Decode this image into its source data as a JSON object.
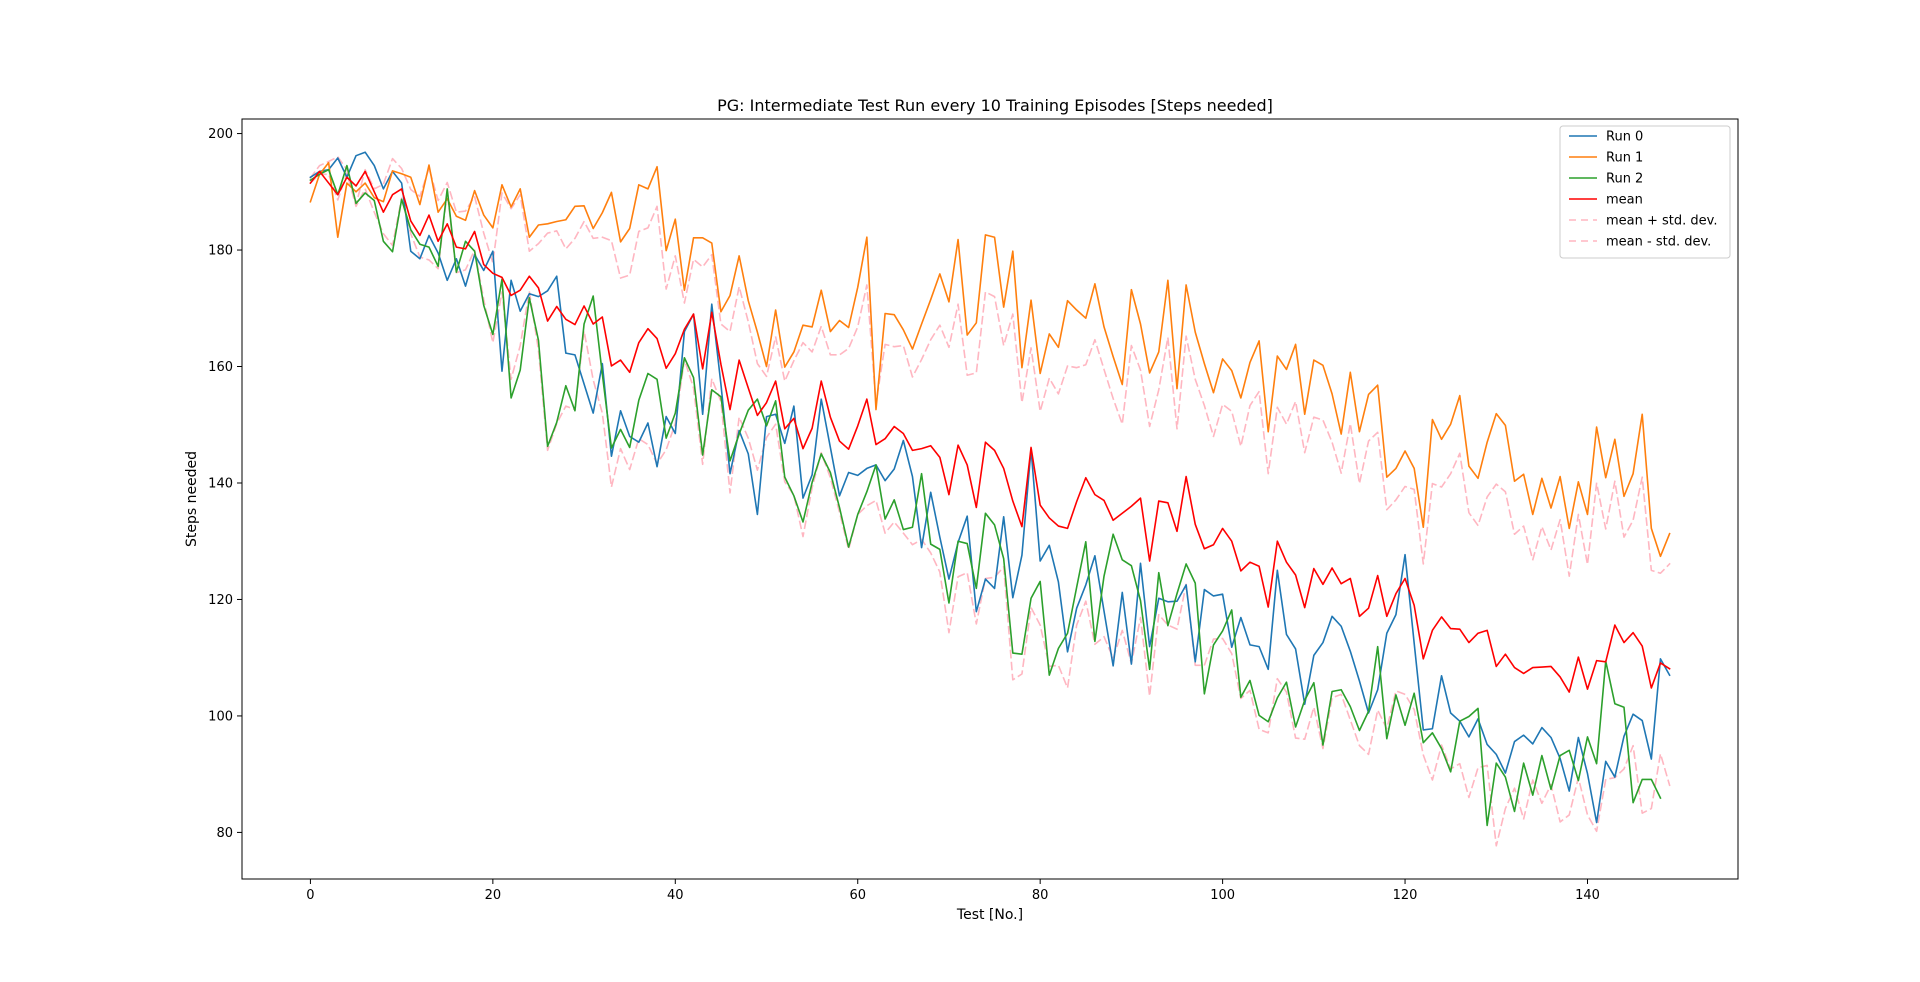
{
  "chart_data": {
    "type": "line",
    "title": "PG: Intermediate Test Run every 10 Training Episodes [Steps needed]",
    "xlabel": "Test [No.]",
    "ylabel": "Steps needed",
    "xlim": [
      -7.5,
      156.5
    ],
    "ylim": [
      72,
      202.5
    ],
    "xticks": [
      0,
      20,
      40,
      60,
      80,
      100,
      120,
      140
    ],
    "yticks": [
      80,
      100,
      120,
      140,
      160,
      180,
      200
    ],
    "grid": false,
    "legend_position": "top-right",
    "x_start": 0,
    "series": [
      {
        "name": "Run 0",
        "color": "#1f77b4",
        "dash": "",
        "values": [
          192.5,
          193.5,
          193.8,
          195.8,
          192.5,
          196.2,
          196.8,
          194.5,
          190.5,
          193.5,
          191.5,
          179.8,
          178.5,
          182.5,
          179.5,
          174.8,
          178.5,
          173.8,
          179.2,
          176.5,
          179.8,
          159.2,
          174.8,
          169.5,
          172.5,
          172.0,
          173.0,
          175.5,
          162.3,
          162.0,
          157.0,
          152.0,
          160.5,
          144.6,
          152.4,
          148.0,
          147.0,
          150.3,
          142.8,
          151.4,
          148.5,
          166.0,
          169.0,
          151.8,
          170.7,
          157.0,
          141.6,
          149.0,
          145.0,
          134.6,
          151.4,
          151.8,
          146.8,
          153.2,
          137.4,
          141.4,
          154.4,
          146.1,
          137.8,
          141.8,
          141.3,
          142.5,
          143.1,
          140.4,
          142.4,
          147.3,
          141.1,
          128.9,
          138.4,
          130.7,
          123.5,
          129.8,
          134.3,
          117.9,
          123.5,
          121.9,
          134.2,
          120.3,
          127.6,
          145.8,
          126.6,
          129.3,
          123.0,
          111.0,
          118.5,
          122.5,
          127.5,
          118.0,
          108.6,
          121.2,
          108.9,
          126.2,
          111.9,
          120.2,
          119.6,
          119.7,
          122.5,
          109.3,
          121.7,
          120.6,
          120.9,
          111.8,
          116.9,
          112.2,
          111.9,
          108.0,
          125.0,
          114.0,
          111.5,
          102.0,
          110.4,
          112.6,
          117.1,
          115.4,
          111.1,
          106.0,
          100.5,
          104.5,
          114.2,
          117.4,
          127.7,
          112.5,
          97.6,
          97.8,
          106.9,
          100.5,
          99.1,
          96.4,
          99.5,
          95.1,
          93.4,
          90.2,
          95.6,
          96.7,
          95.2,
          98.0,
          96.3,
          92.7,
          87.1,
          96.3,
          90.1,
          81.7,
          92.2,
          89.5,
          96.5,
          100.3,
          99.2,
          92.6,
          109.8,
          107.0
        ]
      },
      {
        "name": "Run 1",
        "color": "#ff7f0e",
        "dash": "",
        "values": [
          188.3,
          193.0,
          195.0,
          182.2,
          191.5,
          190.0,
          191.5,
          189.0,
          188.3,
          193.6,
          193.1,
          192.5,
          187.8,
          194.6,
          186.5,
          188.8,
          185.8,
          185.1,
          190.2,
          186.0,
          183.8,
          191.2,
          187.4,
          190.5,
          182.2,
          184.3,
          184.5,
          184.9,
          185.2,
          187.5,
          187.6,
          183.7,
          186.4,
          189.9,
          181.4,
          183.7,
          191.2,
          190.5,
          194.3,
          179.9,
          185.3,
          173.1,
          182.1,
          182.1,
          181.2,
          169.4,
          172.2,
          179.0,
          171.3,
          165.9,
          160.0,
          169.7,
          159.9,
          162.5,
          167.1,
          166.8,
          173.1,
          166.0,
          167.9,
          166.7,
          173.6,
          182.2,
          152.6,
          169.1,
          168.9,
          166.3,
          163.0,
          167.3,
          171.5,
          175.9,
          171.1,
          181.8,
          165.4,
          167.5,
          182.6,
          182.2,
          170.2,
          179.8,
          159.8,
          171.4,
          158.8,
          165.6,
          163.3,
          171.3,
          169.7,
          168.3,
          174.2,
          166.8,
          161.7,
          156.9,
          173.2,
          167.3,
          158.9,
          162.5,
          174.8,
          156.2,
          174.0,
          165.9,
          160.5,
          155.5,
          161.3,
          159.3,
          154.6,
          160.7,
          164.4,
          148.8,
          161.8,
          159.5,
          163.8,
          151.8,
          161.1,
          160.2,
          155.3,
          148.4,
          159.0,
          148.8,
          155.2,
          156.8,
          141.0,
          142.5,
          145.5,
          142.5,
          132.4,
          150.9,
          147.5,
          150.1,
          155.0,
          142.9,
          140.8,
          147.0,
          151.9,
          149.9,
          140.3,
          141.5,
          134.6,
          140.8,
          135.7,
          141.1,
          132.2,
          140.2,
          134.6,
          149.6,
          140.9,
          147.5,
          137.7,
          141.6,
          151.8,
          132.2,
          127.4,
          131.3
        ]
      },
      {
        "name": "Run 2",
        "color": "#2ca02c",
        "dash": "",
        "values": [
          192.0,
          193.0,
          193.8,
          189.5,
          194.5,
          188.0,
          189.8,
          188.5,
          181.5,
          179.7,
          188.7,
          183.5,
          181.0,
          180.5,
          177.2,
          190.5,
          176.2,
          181.5,
          179.8,
          170.5,
          165.5,
          175.0,
          154.6,
          159.4,
          171.8,
          164.5,
          146.3,
          150.4,
          156.7,
          152.4,
          167.3,
          172.1,
          158.7,
          146.0,
          149.2,
          146.1,
          154.2,
          158.8,
          157.8,
          147.7,
          152.0,
          161.5,
          158.1,
          144.8,
          156.0,
          154.8,
          143.8,
          148.4,
          152.5,
          154.4,
          149.8,
          154.1,
          141.0,
          137.8,
          133.3,
          140.1,
          145.0,
          141.8,
          135.8,
          129.0,
          134.6,
          138.5,
          143.1,
          133.8,
          137.1,
          132.0,
          132.4,
          141.6,
          129.5,
          128.6,
          119.4,
          130.0,
          129.6,
          121.9,
          134.8,
          132.8,
          127.0,
          110.8,
          110.6,
          120.2,
          123.1,
          107.0,
          111.6,
          114.2,
          122.1,
          129.9,
          112.8,
          124.0,
          131.2,
          126.8,
          125.8,
          119.8,
          108.0,
          124.6,
          115.5,
          121.0,
          126.1,
          122.8,
          103.8,
          112.2,
          114.6,
          118.2,
          103.2,
          106.1,
          100.1,
          99.0,
          103.1,
          105.8,
          98.1,
          102.7,
          105.7,
          95.0,
          104.2,
          104.5,
          101.6,
          97.5,
          100.8,
          111.9,
          96.1,
          103.6,
          98.4,
          103.9,
          95.4,
          97.1,
          94.4,
          90.4,
          99.1,
          99.9,
          101.3,
          81.2,
          91.9,
          89.5,
          83.6,
          91.9,
          86.4,
          93.2,
          87.4,
          93.2,
          94.1,
          88.9,
          96.4,
          91.8,
          109.4,
          102.1,
          101.5,
          85.1,
          89.1,
          89.1,
          85.9
        ]
      },
      {
        "name": "mean",
        "color": "#ff0000",
        "dash": "",
        "values": [
          191.5,
          193.5,
          191.5,
          189.5,
          192.5,
          191.0,
          193.5,
          190.0,
          186.5,
          189.5,
          190.5,
          185.0,
          182.5,
          186.0,
          181.5,
          184.5,
          180.5,
          180.2,
          183.2,
          177.5,
          176.0,
          175.3,
          172.2,
          173.1,
          175.5,
          173.5,
          167.8,
          170.3,
          168.1,
          167.2,
          170.4,
          167.3,
          168.5,
          160.1,
          161.1,
          159.0,
          164.1,
          166.5,
          164.8,
          159.7,
          162.2,
          166.4,
          169.0,
          159.6,
          169.3,
          160.4,
          152.6,
          161.1,
          156.3,
          151.6,
          153.8,
          157.5,
          149.3,
          151.1,
          145.9,
          149.4,
          157.5,
          151.3,
          147.2,
          145.8,
          149.8,
          154.4,
          146.6,
          147.6,
          149.7,
          148.5,
          145.6,
          145.9,
          146.4,
          144.4,
          138.0,
          146.5,
          143.1,
          135.8,
          147.0,
          145.6,
          142.5,
          136.9,
          132.5,
          146.1,
          136.2,
          134.0,
          132.6,
          132.2,
          136.8,
          140.9,
          138.0,
          137.0,
          133.6,
          134.8,
          136.0,
          137.4,
          126.6,
          136.9,
          136.6,
          131.7,
          141.1,
          132.9,
          128.7,
          129.4,
          132.2,
          130.0,
          124.9,
          126.4,
          125.7,
          118.7,
          130.0,
          126.4,
          124.2,
          118.6,
          125.3,
          122.6,
          125.4,
          122.7,
          123.6,
          117.1,
          118.5,
          124.1,
          117.1,
          121.0,
          123.6,
          119.0,
          109.8,
          114.7,
          117.0,
          115.0,
          114.9,
          112.6,
          114.2,
          114.7,
          108.5,
          110.6,
          108.3,
          107.3,
          108.3,
          108.4,
          108.5,
          106.7,
          104.1,
          110.1,
          104.6,
          109.5,
          109.3,
          115.6,
          112.6,
          114.3,
          112.0,
          104.8,
          109.1,
          108.1
        ]
      },
      {
        "name": "mean + std. dev.",
        "color": "#ffb6c1",
        "dash": "7,5",
        "values": [
          192.4,
          194.5,
          195.2,
          196.0,
          193.8,
          187.8,
          193.8,
          190.5,
          191.3,
          195.7,
          194.0,
          190.4,
          189.2,
          194.1,
          188.5,
          191.6,
          186.5,
          186.7,
          189.2,
          182.9,
          177.8,
          189.8,
          187.1,
          189.5,
          179.8,
          181.1,
          182.9,
          183.3,
          180.2,
          182.0,
          184.9,
          182.0,
          182.2,
          181.6,
          175.2,
          175.7,
          183.2,
          183.8,
          187.5,
          173.3,
          179.0,
          170.9,
          178.4,
          177.1,
          179.2,
          167.3,
          166.0,
          173.7,
          167.7,
          160.5,
          158.3,
          165.1,
          157.5,
          161.0,
          164.1,
          162.5,
          166.9,
          162.0,
          162.0,
          163.1,
          166.8,
          174.0,
          153.6,
          163.8,
          163.4,
          163.6,
          158.2,
          161.2,
          164.6,
          167.1,
          163.3,
          170.7,
          158.5,
          158.9,
          172.8,
          172.0,
          163.6,
          169.0,
          153.8,
          163.2,
          152.3,
          158.0,
          155.3,
          160.1,
          159.8,
          160.3,
          164.6,
          159.5,
          154.5,
          150.1,
          163.6,
          159.4,
          149.7,
          156.0,
          165.0,
          149.3,
          165.2,
          157.8,
          153.3,
          148.0,
          153.5,
          152.3,
          146.3,
          153.3,
          155.7,
          141.6,
          153.0,
          150.1,
          154.0,
          145.2,
          151.3,
          150.8,
          147.0,
          141.7,
          150.2,
          139.9,
          147.2,
          148.7,
          135.4,
          137.1,
          139.4,
          138.9,
          126.1,
          139.9,
          139.3,
          141.6,
          145.1,
          134.9,
          132.7,
          137.6,
          139.8,
          138.5,
          131.2,
          132.6,
          126.8,
          132.5,
          128.5,
          133.7,
          124.0,
          134.6,
          126.0,
          140.0,
          132.1,
          140.3,
          130.7,
          133.6,
          141.0,
          125.0,
          124.5,
          126.1
        ]
      },
      {
        "name": "mean - std. dev.",
        "color": "#ffb6c1",
        "dash": "7,5",
        "values": [
          191.5,
          193.0,
          193.0,
          188.6,
          193.2,
          187.5,
          190.5,
          186.5,
          182.8,
          180.8,
          188.9,
          182.8,
          178.8,
          178.3,
          176.8,
          189.9,
          176.1,
          176.6,
          180.0,
          171.5,
          164.1,
          172.8,
          157.8,
          163.6,
          172.9,
          162.8,
          145.6,
          150.2,
          153.2,
          152.6,
          166.1,
          157.7,
          152.0,
          139.3,
          145.9,
          142.3,
          147.6,
          146.6,
          143.3,
          145.7,
          150.2,
          161.2,
          156.3,
          143.2,
          157.9,
          154.0,
          138.3,
          151.3,
          147.7,
          142.2,
          147.8,
          150.1,
          140.2,
          137.9,
          130.8,
          139.2,
          145.2,
          140.9,
          135.0,
          128.6,
          134.6,
          136.1,
          137.0,
          131.4,
          133.3,
          131.4,
          129.4,
          130.3,
          128.0,
          124.7,
          114.3,
          123.9,
          124.6,
          115.8,
          123.6,
          123.8,
          125.6,
          106.2,
          107.2,
          118.6,
          115.6,
          108.5,
          108.7,
          104.8,
          115.6,
          119.7,
          112.3,
          113.6,
          109.9,
          114.7,
          109.0,
          116.9,
          103.4,
          117.4,
          115.6,
          114.9,
          122.6,
          108.7,
          108.7,
          113.2,
          113.3,
          110.7,
          103.0,
          104.4,
          97.7,
          97.1,
          106.4,
          104.1,
          96.2,
          96.0,
          101.5,
          94.4,
          103.1,
          103.7,
          99.3,
          94.9,
          93.4,
          101.0,
          97.8,
          104.3,
          103.7,
          101.1,
          93.3,
          89.0,
          95.0,
          90.9,
          91.8,
          86.0,
          91.1,
          91.5,
          77.7,
          84.1,
          87.6,
          82.3,
          89.0,
          85.0,
          88.2,
          81.8,
          83.0,
          89.4,
          83.0,
          80.2,
          89.1,
          89.4,
          90.9,
          94.9,
          83.3,
          84.1,
          93.5,
          88.1
        ]
      }
    ]
  }
}
